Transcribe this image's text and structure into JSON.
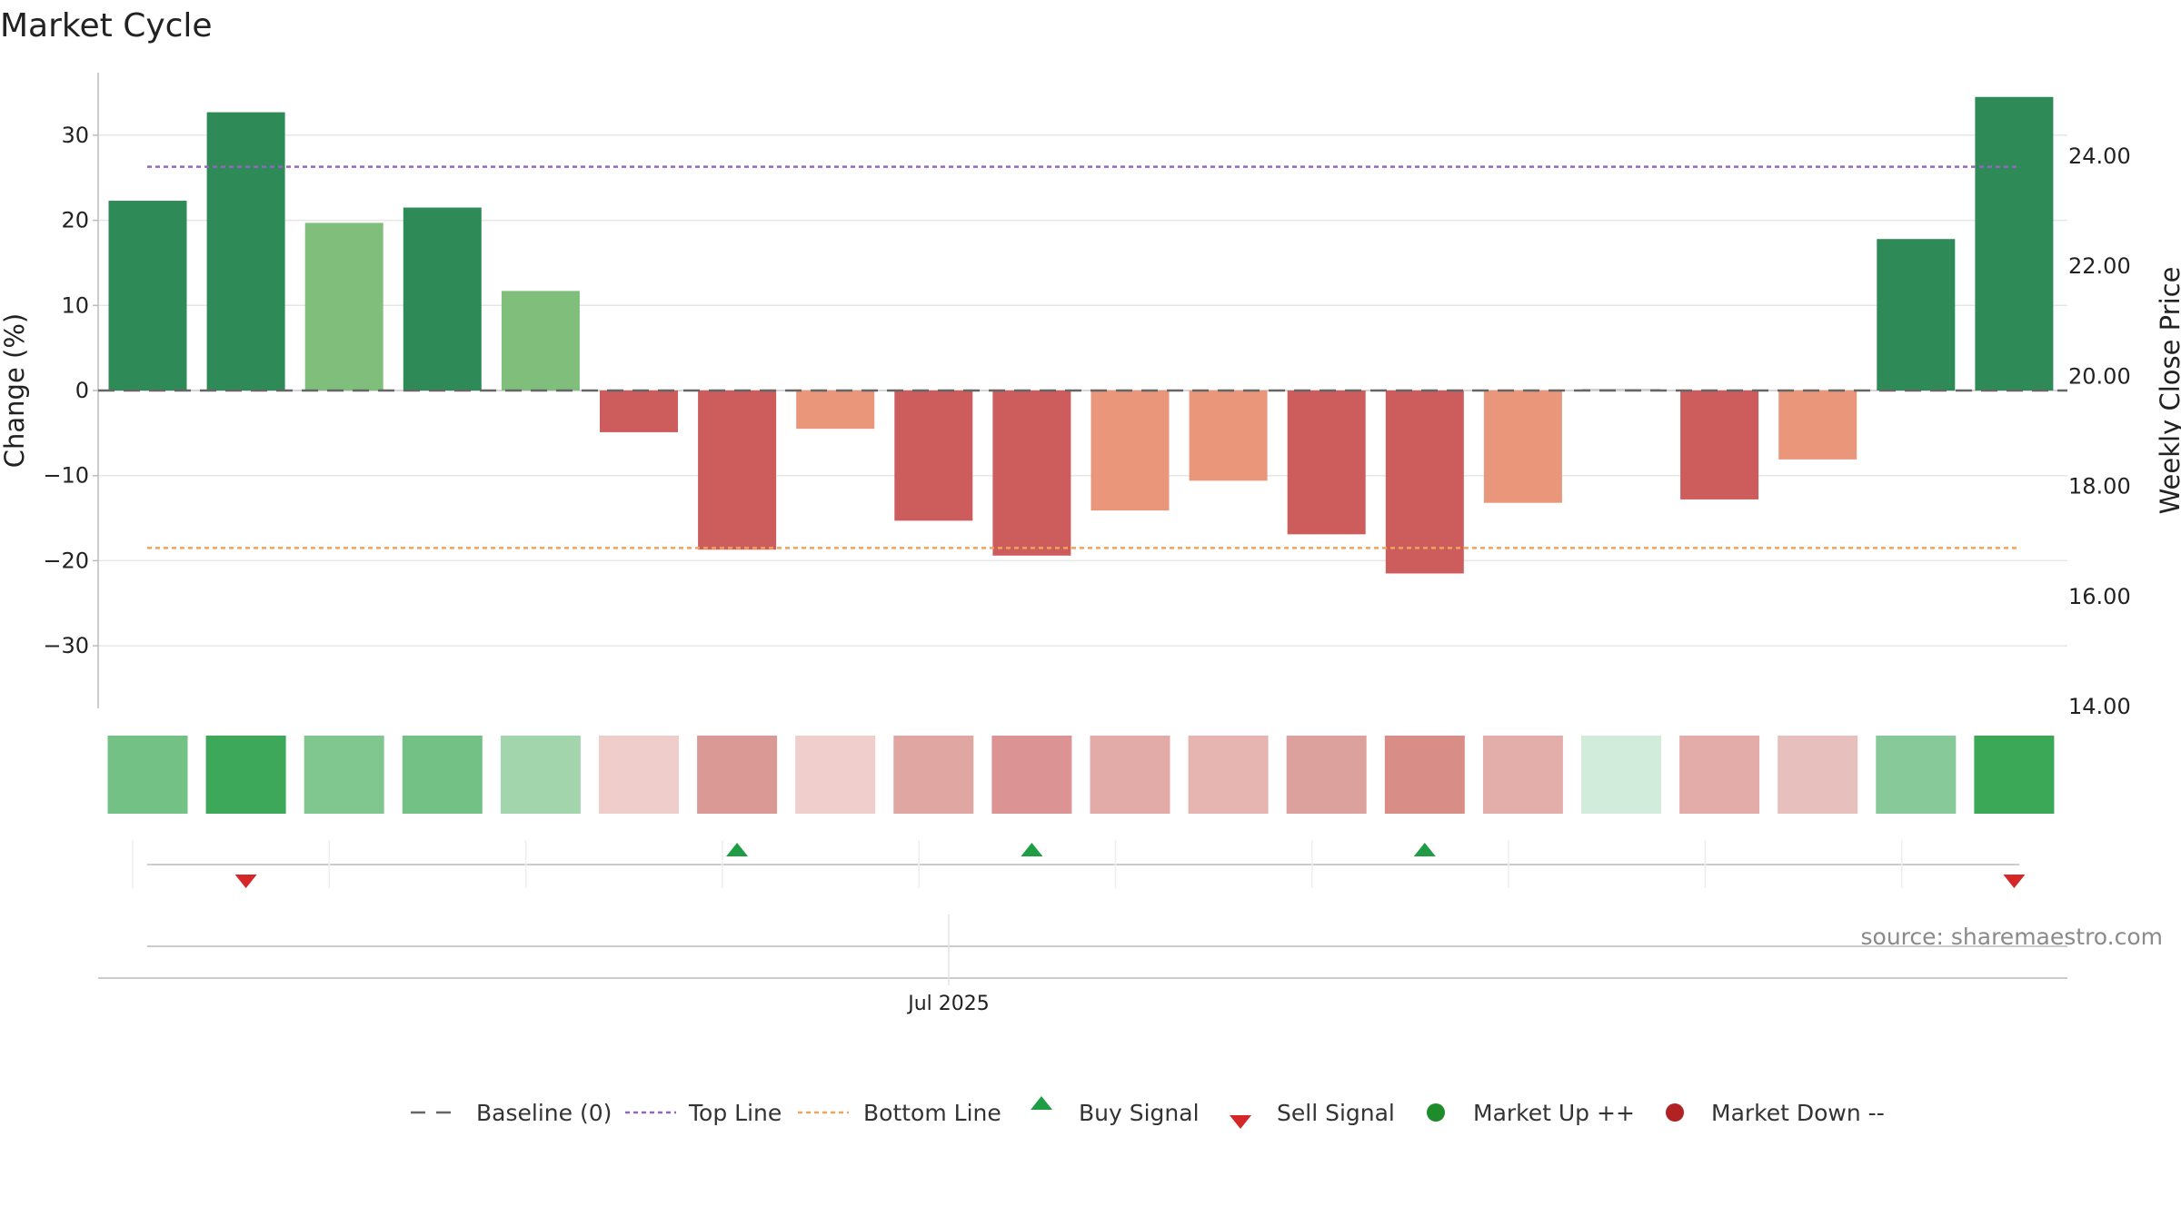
{
  "chart_data": {
    "type": "bar",
    "title": "Market Cycle",
    "ylabel": "Change (%)",
    "y2label": "Weekly Close Price",
    "ylim": [
      -37,
      38
    ],
    "y2lim": [
      14.0,
      25.0
    ],
    "yticks": [
      "30",
      "20",
      "10",
      "0",
      "−10",
      "−20",
      "−30"
    ],
    "y2ticks": [
      "24.00",
      "22.00",
      "20.00",
      "18.00",
      "16.00",
      "14.00"
    ],
    "xtick_label": "Jul 2025",
    "grid": true,
    "legend_position": "bottom-center",
    "values": [
      22.3,
      32.7,
      19.7,
      21.5,
      11.7,
      -4.9,
      -18.7,
      -4.5,
      -15.3,
      -19.4,
      -14.1,
      -10.6,
      -16.9,
      -21.5,
      -13.2,
      0.2,
      -12.8,
      -8.1,
      17.8,
      34.5
    ],
    "bar_colors": [
      "#2e8b57",
      "#2e8b57",
      "#7fbf7b",
      "#2e8b57",
      "#7fbf7b",
      "#cd5c5c",
      "#cd5c5c",
      "#e9967a",
      "#cd5c5c",
      "#cd5c5c",
      "#e9967a",
      "#e9967a",
      "#cd5c5c",
      "#cd5c5c",
      "#e9967a",
      "#cccccc",
      "#cd5c5c",
      "#e9967a",
      "#2e8b57",
      "#2e8b57"
    ],
    "strength_colors": [
      "#73c185",
      "#3ea85a",
      "#80c68f",
      "#73c185",
      "#a2d5ac",
      "#efcdcb",
      "#db9995",
      "#efcecc",
      "#dfa6a2",
      "#db9393",
      "#e2aba8",
      "#e6b5b1",
      "#dca19c",
      "#d98d87",
      "#e3aea9",
      "#d1ecda",
      "#e3aca9",
      "#e7bfbc",
      "#87c998",
      "#3aa857"
    ],
    "top_line": 26.3,
    "bottom_line": -18.5,
    "baseline": 0,
    "signals": [
      {
        "index": 1,
        "type": "sell"
      },
      {
        "index": 6,
        "type": "buy"
      },
      {
        "index": 9,
        "type": "buy"
      },
      {
        "index": 13,
        "type": "buy"
      },
      {
        "index": 19,
        "type": "sell"
      }
    ],
    "colors": {
      "up_dark": "#2e8b57",
      "up_light": "#7fbf7b",
      "down_dark": "#cd5c5c",
      "down_light": "#e9967a",
      "top_line": "#9467bd",
      "bottom_line": "#f0a35a",
      "baseline": "#666666",
      "buy": "#1f9d45",
      "sell": "#d62728",
      "market_up": "#1e8c2a",
      "market_down": "#b22222"
    }
  },
  "source": "source: sharemaestro.com",
  "legend": [
    {
      "key": "baseline",
      "label": "Baseline (0)"
    },
    {
      "key": "top",
      "label": "Top Line"
    },
    {
      "key": "bottom",
      "label": "Bottom Line"
    },
    {
      "key": "buy",
      "label": "Buy Signal"
    },
    {
      "key": "sell",
      "label": "Sell Signal"
    },
    {
      "key": "up",
      "label": "Market Up ++"
    },
    {
      "key": "down",
      "label": "Market Down --"
    }
  ]
}
